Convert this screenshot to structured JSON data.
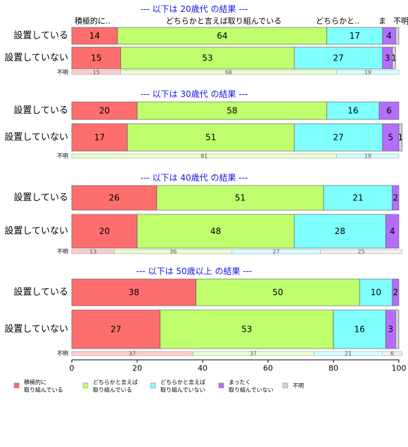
{
  "chart_data": {
    "type": "bar",
    "orientation": "horizontal",
    "stacked": true,
    "xlim": [
      0,
      100
    ],
    "xticks": [
      0,
      20,
      40,
      60,
      80,
      100
    ],
    "legend_position": "bottom",
    "series": [
      {
        "name": "積極的に\n取り組んでいる",
        "color": "#FF6E6E"
      },
      {
        "name": "どちらかと言えば\n取り組んでいる",
        "color": "#BFFF6E"
      },
      {
        "name": "どちらかと言えば\n取り組んでいない",
        "color": "#80FFFF"
      },
      {
        "name": "まったく\n取り組んでいない",
        "color": "#B46EFF"
      },
      {
        "name": "不明",
        "color": "#D3D3D3"
      }
    ],
    "panels": [
      {
        "title": "--- 以下は 20歳代 の結果 ---",
        "header_labels": [
          "積極的に..",
          "どちらかと言えば取り組んでいる",
          "どちらかと..",
          "ま",
          "不明"
        ],
        "rows": [
          {
            "label": "設置している",
            "values": [
              14,
              64,
              17,
              4,
              1
            ],
            "labels": [
              "14",
              "64",
              "17",
              "4",
              ""
            ]
          },
          {
            "label": "設置していない",
            "values": [
              15,
              53,
              27,
              3,
              1
            ],
            "labels": [
              "15",
              "53",
              "27",
              "3",
              "1"
            ]
          }
        ],
        "fumei": {
          "label": "不明",
          "values": [
            15,
            66,
            19
          ],
          "labels": [
            "15",
            "66",
            "19"
          ]
        }
      },
      {
        "title": "--- 以下は 30歳代 の結果 ---",
        "rows": [
          {
            "label": "設置している",
            "values": [
              20,
              58,
              16,
              6,
              0
            ],
            "labels": [
              "20",
              "58",
              "16",
              "6",
              ""
            ]
          },
          {
            "label": "設置していない",
            "values": [
              17,
              51,
              27,
              5,
              1
            ],
            "labels": [
              "17",
              "51",
              "27",
              "5",
              "1"
            ]
          }
        ],
        "fumei": {
          "label": "不明",
          "values": [
            0,
            81,
            19
          ],
          "labels": [
            "",
            "81",
            "19"
          ]
        }
      },
      {
        "title": "--- 以下は 40歳代 の結果 ---",
        "rows": [
          {
            "label": "設置している",
            "values": [
              26,
              51,
              21,
              2,
              0
            ],
            "labels": [
              "26",
              "51",
              "21",
              "2",
              ""
            ]
          },
          {
            "label": "設置していない",
            "values": [
              20,
              48,
              28,
              4,
              0
            ],
            "labels": [
              "20",
              "48",
              "28",
              "4",
              ""
            ]
          }
        ],
        "fumei": {
          "label": "不明",
          "values": [
            13,
            36,
            27,
            25
          ],
          "labels": [
            "13",
            "36",
            "27",
            "25"
          ]
        }
      },
      {
        "title": "--- 以下は 50歳以上 の結果 ---",
        "rows": [
          {
            "label": "設置している",
            "values": [
              38,
              50,
              10,
              2,
              0
            ],
            "labels": [
              "38",
              "50",
              "10",
              "2",
              ""
            ]
          },
          {
            "label": "設置していない",
            "values": [
              27,
              53,
              16,
              3,
              1
            ],
            "labels": [
              "27",
              "53",
              "16",
              "3",
              ""
            ]
          }
        ],
        "fumei": {
          "label": "不明",
          "values": [
            37,
            37,
            21,
            6
          ],
          "labels": [
            "37",
            "37",
            "21",
            "6"
          ]
        }
      }
    ]
  }
}
